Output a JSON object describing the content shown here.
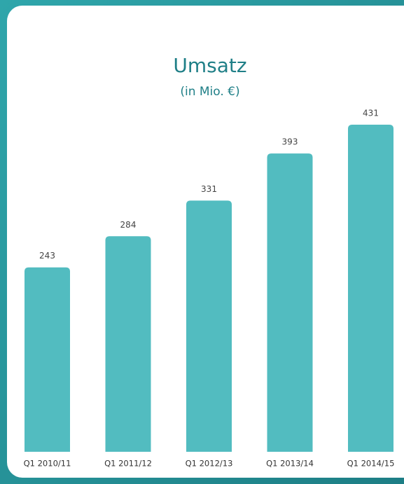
{
  "chart_data": {
    "type": "bar",
    "title": "Umsatz",
    "subtitle": "(in Mio. €)",
    "categories": [
      "Q1 2010/11",
      "Q1 2011/12",
      "Q1 2012/13",
      "Q1 2013/14",
      "Q1 2014/15"
    ],
    "values": [
      243,
      284,
      331,
      393,
      431
    ],
    "color": "#52bcc0"
  }
}
